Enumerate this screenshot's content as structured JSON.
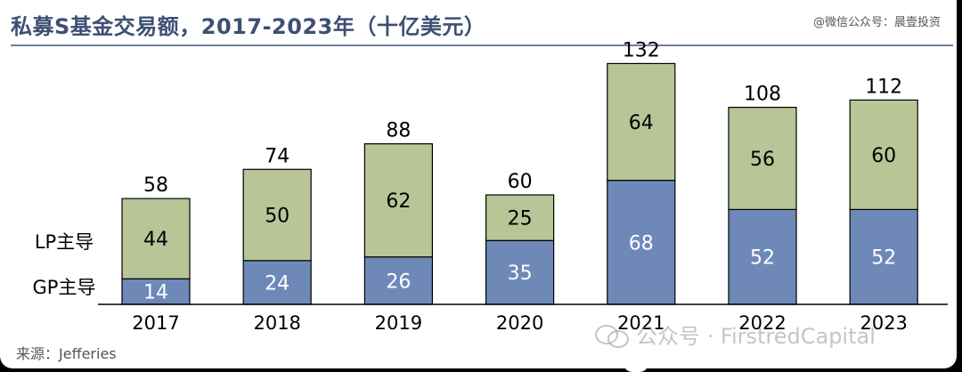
{
  "title": "私募S基金交易额，2017-2023年（十亿美元）",
  "credit": "@微信公众号：晨壹投资",
  "source": "来源：Jefferies",
  "watermark": "公众号 · FirstredCapital",
  "colors": {
    "gp": "#6e89b8",
    "lp": "#b7c597",
    "title": "#3e4f74",
    "outline": "#000000"
  },
  "chart_data": {
    "type": "bar",
    "stacked": true,
    "title": "私募S基金交易额，2017-2023年（十亿美元）",
    "categories": [
      "2017",
      "2018",
      "2019",
      "2020",
      "2021",
      "2022",
      "2023"
    ],
    "series": [
      {
        "name": "GP主导",
        "values": [
          14,
          24,
          26,
          35,
          68,
          52,
          52
        ]
      },
      {
        "name": "LP主导",
        "values": [
          44,
          50,
          62,
          25,
          64,
          56,
          60
        ]
      }
    ],
    "totals": [
      58,
      74,
      88,
      60,
      132,
      108,
      112
    ],
    "legend_labels": [
      "GP主导",
      "LP主导"
    ],
    "xlabel": "",
    "ylabel": "",
    "ylim": [
      0,
      140
    ]
  }
}
